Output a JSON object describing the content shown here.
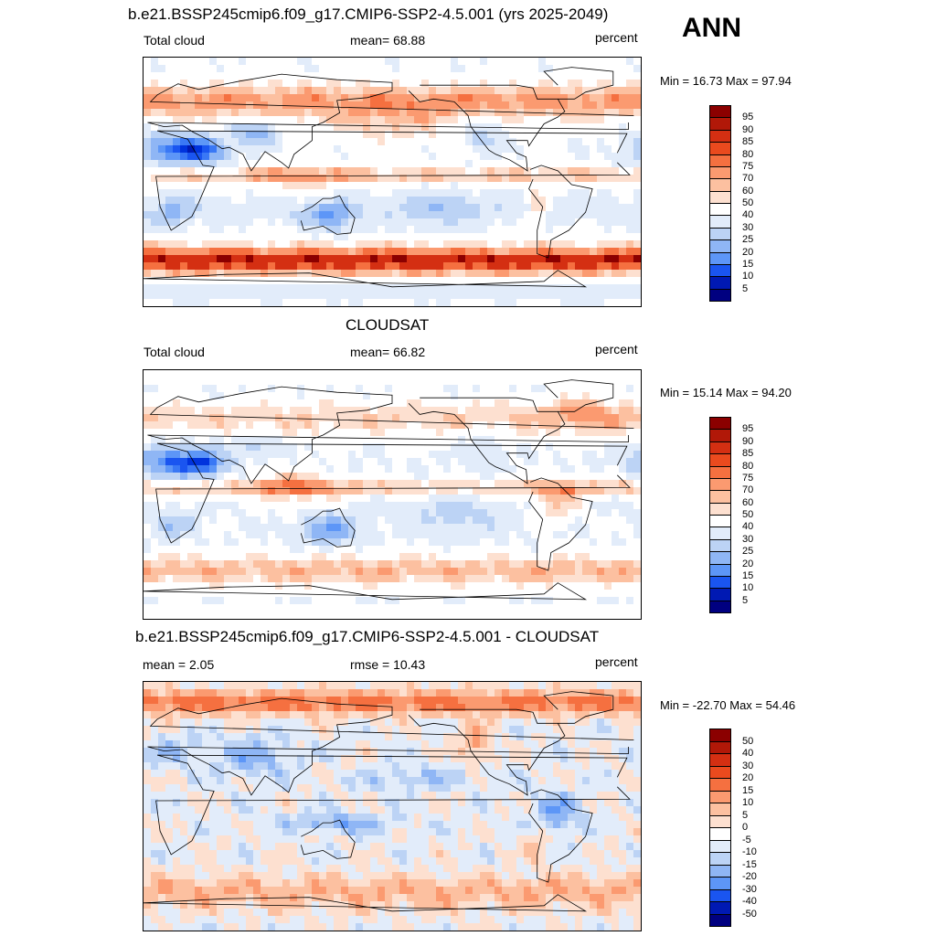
{
  "season": "ANN",
  "panels": [
    {
      "title": "b.e21.BSSP245cmip6.f09_g17.CMIP6-SSP2-4.5.001 (yrs 2025-2049)",
      "left_label": "Total cloud",
      "center_label": "mean=  68.88",
      "right_label": "percent",
      "minmax": "Min =  16.73 Max =  97.94",
      "colorbar_labels": [
        "95",
        "90",
        "85",
        "80",
        "75",
        "70",
        "60",
        "50",
        "40",
        "30",
        "25",
        "20",
        "15",
        "10",
        "5"
      ]
    },
    {
      "title": "CLOUDSAT",
      "left_label": "Total cloud",
      "center_label": "mean=  66.82",
      "right_label": "percent",
      "minmax": "Min =  15.14 Max =  94.20",
      "colorbar_labels": [
        "95",
        "90",
        "85",
        "80",
        "75",
        "70",
        "60",
        "50",
        "40",
        "30",
        "25",
        "20",
        "15",
        "10",
        "5"
      ]
    },
    {
      "title": "b.e21.BSSP245cmip6.f09_g17.CMIP6-SSP2-4.5.001 - CLOUDSAT",
      "left_label": "mean =   2.05",
      "center_label": "rmse =  10.43",
      "right_label": "percent",
      "minmax": "Min = -22.70 Max =  54.46",
      "colorbar_labels": [
        "50",
        "40",
        "30",
        "20",
        "15",
        "10",
        "5",
        "0",
        "-5",
        "-10",
        "-15",
        "-20",
        "-30",
        "-40",
        "-50"
      ]
    }
  ],
  "colors": {
    "palette": [
      "#000080",
      "#0019b3",
      "#0033dd",
      "#1a55f0",
      "#3a78f5",
      "#5d96f7",
      "#8fb6f5",
      "#bcd3f5",
      "#e2ecfa",
      "#ffffff",
      "#fde0d0",
      "#fcc0a0",
      "#fb9a70",
      "#f57040",
      "#ea4a1e",
      "#d42f12",
      "#b11808",
      "#8b0000"
    ],
    "coastline": "#000000"
  },
  "chart_data": [
    {
      "type": "heatmap",
      "title": "b.e21.BSSP245cmip6.f09_g17.CMIP6-SSP2-4.5.001 (yrs 2025-2049)",
      "variable": "Total cloud",
      "units": "percent",
      "mean": 68.88,
      "min": 16.73,
      "max": 97.94,
      "levels": [
        5,
        10,
        15,
        20,
        25,
        30,
        40,
        50,
        60,
        70,
        75,
        80,
        85,
        90,
        95
      ],
      "colormap": "blue-white-red, 16 bins",
      "coastlines": true
    },
    {
      "type": "heatmap",
      "title": "CLOUDSAT",
      "variable": "Total cloud",
      "units": "percent",
      "mean": 66.82,
      "min": 15.14,
      "max": 94.2,
      "levels": [
        5,
        10,
        15,
        20,
        25,
        30,
        40,
        50,
        60,
        70,
        75,
        80,
        85,
        90,
        95
      ],
      "colormap": "blue-white-red, 16 bins",
      "coastlines": true
    },
    {
      "type": "heatmap",
      "title": "b.e21.BSSP245cmip6.f09_g17.CMIP6-SSP2-4.5.001 - CLOUDSAT",
      "units": "percent",
      "mean": 2.05,
      "rmse": 10.43,
      "min": -22.7,
      "max": 54.46,
      "levels": [
        -50,
        -40,
        -30,
        -20,
        -15,
        -10,
        -5,
        0,
        5,
        10,
        15,
        20,
        30,
        40,
        50
      ],
      "colormap": "blue-white-red, 16 bins",
      "coastlines": true
    }
  ]
}
